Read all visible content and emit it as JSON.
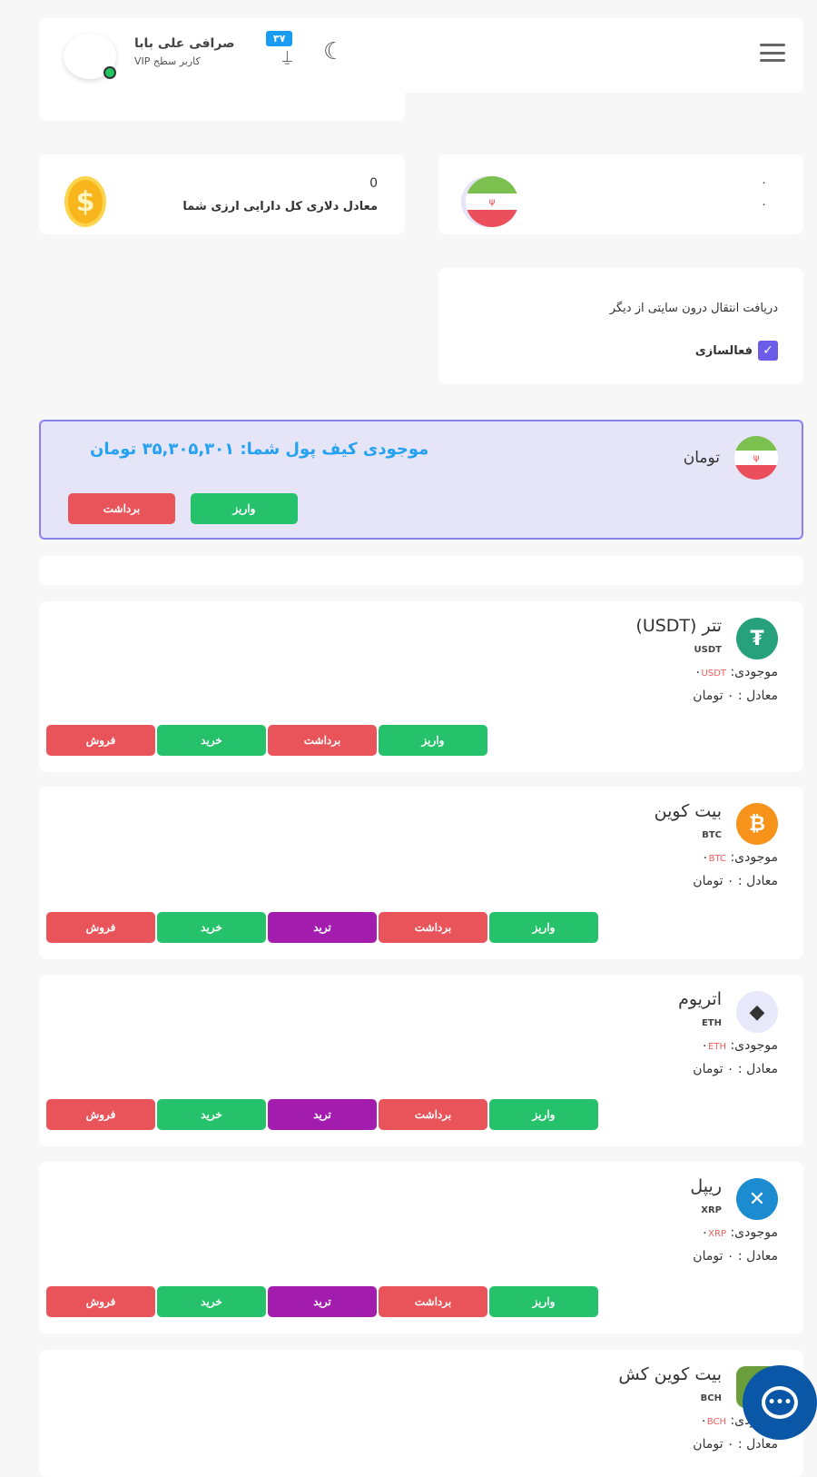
{
  "header": {
    "user_name": "صرافی علی بابا",
    "user_level": "کاربر سطح VIP",
    "notification_count": "۳۷",
    "online_color": "#22c55e"
  },
  "summary": {
    "dollar_value": "0",
    "dollar_label": "معادل دلاری کل دارایی ارزی شما",
    "toman_line1": "۰",
    "toman_line2": "۰"
  },
  "transfer": {
    "title": "دریافت انتقال درون سایتی از دیگر",
    "checkbox_label": "فعالسازی",
    "checked": true
  },
  "toman_wallet": {
    "currency": "تومان",
    "balance_text": "موجودی کیف پول شما: ۳۵,۳۰۵,۳۰۱ تومان",
    "deposit": "واریز",
    "withdraw": "برداشت"
  },
  "labels": {
    "balance": "موجودی:",
    "equivalent": "معادل : ۰ تومان",
    "zero": "۰"
  },
  "coins": [
    {
      "name": "تتر (USDT)",
      "symbol": "USDT",
      "color": "#26a17b",
      "glyph": "₮",
      "buttons": [
        "واریز",
        "برداشت",
        "خرید",
        "فروش"
      ],
      "kinds": [
        "green",
        "red",
        "green",
        "red"
      ]
    },
    {
      "name": "بیت کوین",
      "symbol": "BTC",
      "color": "#f7931a",
      "glyph": "₿",
      "buttons": [
        "واریز",
        "برداشت",
        "ترید",
        "خرید",
        "فروش"
      ],
      "kinds": [
        "green",
        "red",
        "purple",
        "green",
        "red"
      ]
    },
    {
      "name": "اتریوم",
      "symbol": "ETH",
      "color": "#e8e8fb",
      "glyph": "◆",
      "buttons": [
        "واریز",
        "برداشت",
        "ترید",
        "خرید",
        "فروش"
      ],
      "kinds": [
        "green",
        "red",
        "purple",
        "green",
        "red"
      ]
    },
    {
      "name": "ریپل",
      "symbol": "XRP",
      "color": "#1c8bd0",
      "glyph": "✕",
      "buttons": [
        "واریز",
        "برداشت",
        "ترید",
        "خرید",
        "فروش"
      ],
      "kinds": [
        "green",
        "red",
        "purple",
        "green",
        "red"
      ]
    },
    {
      "name": "بیت کوین کش",
      "symbol": "BCH",
      "color": "#6a9e3c",
      "glyph": "",
      "buttons": [],
      "kinds": []
    }
  ]
}
